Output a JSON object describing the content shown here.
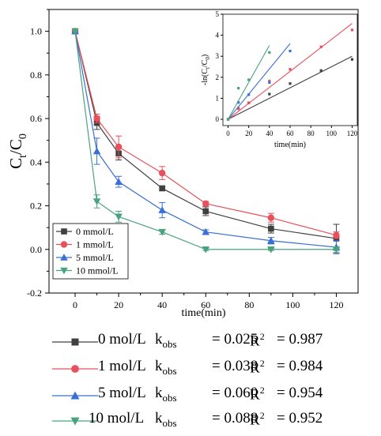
{
  "chart_data": [
    {
      "type": "line",
      "xlabel": "time(min)",
      "ylabel_main": "C",
      "ylabel_sub1": "t",
      "ylabel_sep": "/C",
      "ylabel_sub2": "0",
      "xlim": [
        -12,
        130
      ],
      "ylim": [
        -0.2,
        1.1
      ],
      "xticks": [
        "0",
        "20",
        "40",
        "60",
        "80",
        "100",
        "120"
      ],
      "yticks": [
        "-0.2",
        "0.0",
        "0.2",
        "0.4",
        "0.6",
        "0.8",
        "1.0"
      ],
      "x": [
        0,
        10,
        20,
        40,
        60,
        90,
        120
      ],
      "legend": "bottom-left",
      "series": [
        {
          "name": "0 mmol/L",
          "color": "#404040",
          "marker": "square",
          "values": [
            1.0,
            0.58,
            0.44,
            0.28,
            0.175,
            0.095,
            0.05
          ],
          "errors": [
            0,
            0.03,
            0.03,
            0.01,
            0.02,
            0.02,
            0.065
          ]
        },
        {
          "name": "1 mmol/L",
          "color": "#e8505b",
          "marker": "circle",
          "values": [
            1.0,
            0.6,
            0.47,
            0.35,
            0.21,
            0.145,
            0.065
          ],
          "errors": [
            0,
            0.02,
            0.05,
            0.03,
            0.01,
            0.02,
            0.015
          ]
        },
        {
          "name": "5 mmol/L",
          "color": "#3a6fd8",
          "marker": "triangle-up",
          "values": [
            1.0,
            0.45,
            0.31,
            0.18,
            0.08,
            0.04,
            0.01
          ],
          "errors": [
            0,
            0.06,
            0.025,
            0.035,
            0.01,
            0.015,
            0.03
          ]
        },
        {
          "name": "10 mmol/L",
          "color": "#4aa37f",
          "marker": "triangle-down",
          "values": [
            1.0,
            0.22,
            0.15,
            0.08,
            0.0,
            0.0,
            0.0
          ],
          "errors": [
            0,
            0.03,
            0.025,
            0.01,
            0.005,
            0.005,
            0.005
          ]
        }
      ]
    },
    {
      "type": "scatter",
      "xlabel": "time(min)",
      "ylabel": "-ln(C",
      "ylabel_sub1": "t",
      "ylabel_mid": "/C",
      "ylabel_sub2": "0",
      "ylabel_end": ")",
      "xlim": [
        -5,
        125
      ],
      "ylim": [
        -0.3,
        5
      ],
      "xticks": [
        "0",
        "20",
        "40",
        "60",
        "80",
        "100",
        "120"
      ],
      "yticks": [
        "0",
        "1",
        "2",
        "3",
        "4",
        "5"
      ],
      "series": [
        {
          "color": "#404040",
          "slope": 0.025,
          "x": [
            0,
            10,
            20,
            40,
            60,
            90,
            120
          ],
          "values": [
            0,
            0.52,
            0.78,
            1.2,
            1.7,
            2.32,
            2.85
          ]
        },
        {
          "color": "#e8505b",
          "slope": 0.038,
          "x": [
            0,
            10,
            20,
            40,
            60,
            90,
            120
          ],
          "values": [
            0,
            0.5,
            0.78,
            1.82,
            2.38,
            3.45,
            4.25
          ]
        },
        {
          "color": "#3a6fd8",
          "slope": 0.06,
          "x": [
            0,
            10,
            20,
            40,
            60
          ],
          "values": [
            0,
            0.8,
            1.17,
            1.75,
            3.25
          ]
        },
        {
          "color": "#4aa37f",
          "slope": 0.088,
          "x": [
            0,
            10,
            20,
            40
          ],
          "values": [
            0,
            1.48,
            1.88,
            3.18
          ]
        }
      ]
    }
  ],
  "kinetics": [
    {
      "condition": "0 mol/L",
      "k_label": "k",
      "k_sub": "obs",
      "k_value": "= 0.025",
      "r_label": "R",
      "r_sup": "2",
      "r_value": "= 0.987",
      "color": "#404040",
      "marker": "square"
    },
    {
      "condition": "1 mol/L",
      "k_label": "k",
      "k_sub": "obs",
      "k_value": "= 0.038",
      "r_label": "R",
      "r_sup": "2",
      "r_value": "= 0.984",
      "color": "#e8505b",
      "marker": "circle"
    },
    {
      "condition": "5 mol/L",
      "k_label": "k",
      "k_sub": "obs",
      "k_value": "= 0.060",
      "r_label": "R",
      "r_sup": "2",
      "r_value": "= 0.954",
      "color": "#3a6fd8",
      "marker": "triangle-up"
    },
    {
      "condition": "10 mol/L",
      "k_label": "k",
      "k_sub": "obs",
      "k_value": "= 0.088",
      "r_label": "R",
      "r_sup": "2",
      "r_value": "= 0.952",
      "color": "#4aa37f",
      "marker": "triangle-down"
    }
  ]
}
